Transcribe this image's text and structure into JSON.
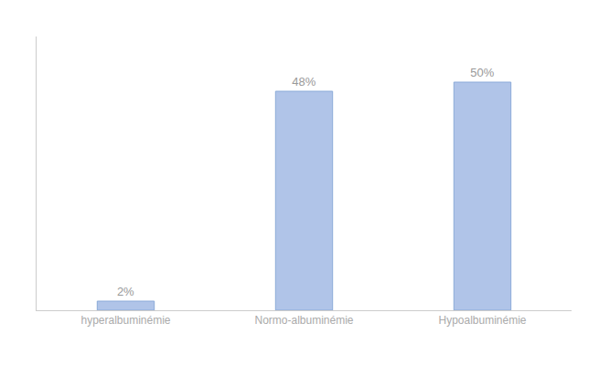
{
  "chart_data": {
    "type": "bar",
    "categories": [
      "hyperalbuminémie",
      "Normo-albuminémie",
      "Hypoalbuminémie"
    ],
    "values": [
      2,
      48,
      50
    ],
    "value_labels": [
      "2%",
      "48%",
      "50%"
    ],
    "data_labels": true,
    "color": "#b0c4e8",
    "ylim": [
      0,
      60
    ],
    "grid": false,
    "tick_labels": "x"
  }
}
